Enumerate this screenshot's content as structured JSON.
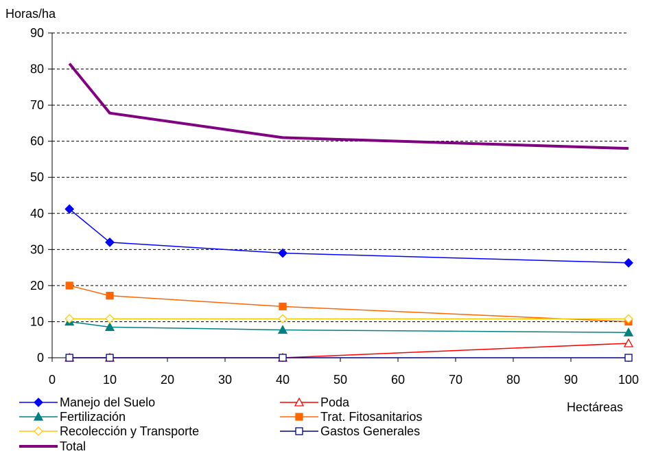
{
  "chart_data": {
    "type": "line",
    "ylabel": "Horas/ha",
    "xlabel": "Hectáreas",
    "xlim": [
      0,
      100
    ],
    "ylim": [
      0,
      90
    ],
    "x_ticks": [
      "0",
      "10",
      "20",
      "30",
      "40",
      "50",
      "60",
      "70",
      "80",
      "90",
      "100"
    ],
    "y_ticks": [
      "0",
      "10",
      "20",
      "30",
      "40",
      "50",
      "60",
      "70",
      "80",
      "90"
    ],
    "grid": "horizontal dashed",
    "legend_position": "bottom",
    "x": [
      3,
      10,
      40,
      100
    ],
    "series": [
      {
        "name": "Manejo del Suelo",
        "values": [
          41.2,
          32.0,
          29.0,
          26.3
        ],
        "color": "#0000ff",
        "marker": "diamond-filled"
      },
      {
        "name": "Poda",
        "values": [
          0,
          0,
          0,
          4.0
        ],
        "color": "#ff0000",
        "marker": "triangle-open"
      },
      {
        "name": "Fertilización",
        "values": [
          10.0,
          8.5,
          7.7,
          7.0
        ],
        "color": "#008080",
        "marker": "triangle-filled"
      },
      {
        "name": "Trat. Fitosanitarios",
        "values": [
          20.0,
          17.2,
          14.2,
          10.0
        ],
        "color": "#ff6600",
        "marker": "square-filled"
      },
      {
        "name": "Recolección y Transporte",
        "values": [
          10.8,
          10.8,
          10.8,
          10.8
        ],
        "color": "#ffcc00",
        "marker": "diamond-open"
      },
      {
        "name": "Gastos Generales",
        "values": [
          0,
          0,
          0,
          0
        ],
        "color": "#000080",
        "marker": "square-open"
      },
      {
        "name": "Total",
        "values": [
          81.5,
          67.8,
          61.0,
          58.0
        ],
        "color": "#800080",
        "marker": "none"
      }
    ]
  }
}
